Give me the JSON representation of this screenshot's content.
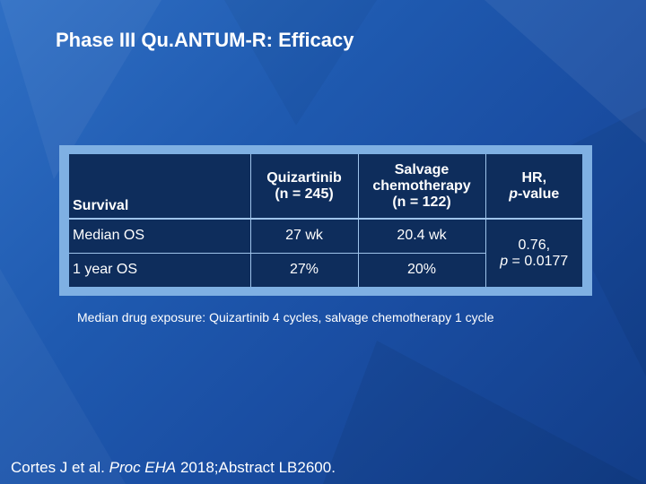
{
  "slide": {
    "title": "Phase III Qu.ANTUM-R: Efficacy"
  },
  "table": {
    "headers": {
      "survival": "Survival",
      "quizartinib_name": "Quizartinib",
      "quizartinib_n": "(n = 245)",
      "salvage_line1": "Salvage",
      "salvage_line2": "chemotherapy",
      "salvage_n": "(n = 122)",
      "hr_line1": "HR,",
      "hr_p": "p",
      "hr_value": "-value"
    },
    "rows": [
      {
        "label": "Median OS",
        "quizartinib": "27 wk",
        "salvage": "20.4 wk"
      },
      {
        "label": "1 year OS",
        "quizartinib": "27%",
        "salvage": "20%"
      }
    ],
    "hr_result": {
      "line1": "0.76,",
      "p": "p",
      "rest": " = 0.0177"
    }
  },
  "note": "Median drug exposure: Quizartinib 4 cycles, salvage chemotherapy 1 cycle",
  "citation": {
    "prefix": "Cortes J et al. ",
    "journal": "Proc EHA",
    "suffix": " 2018;Abstract LB2600."
  }
}
